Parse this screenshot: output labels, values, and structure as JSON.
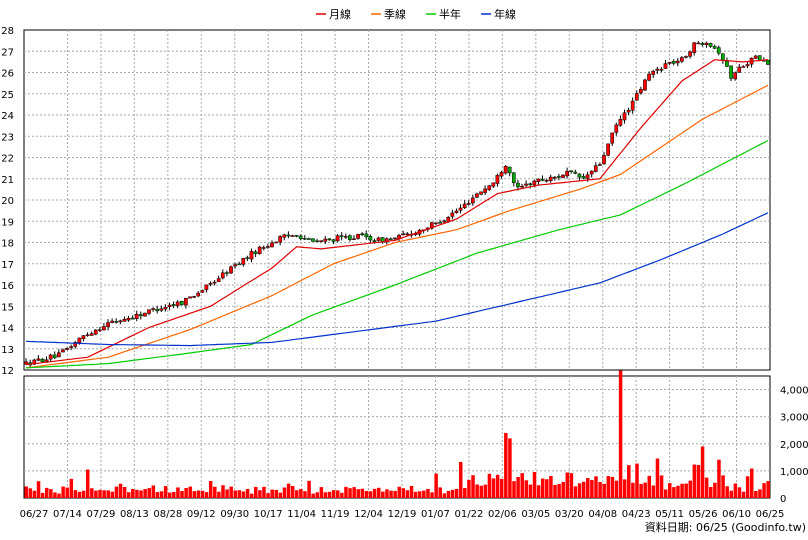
{
  "chart_data": [
    {
      "type": "candlestick-line",
      "legend": [
        {
          "name": "月線",
          "color": "#e00000"
        },
        {
          "name": "季線",
          "color": "#ff6600"
        },
        {
          "name": "半年",
          "color": "#00cc00"
        },
        {
          "name": "年線",
          "color": "#0033cc"
        }
      ],
      "ylim": [
        12,
        28
      ],
      "y_ticks": [
        "12",
        "13",
        "14",
        "15",
        "16",
        "17",
        "18",
        "19",
        "20",
        "21",
        "22",
        "23",
        "24",
        "25",
        "26",
        "27",
        "28"
      ],
      "x_ticks": [
        "06/27",
        "07/14",
        "07/29",
        "08/13",
        "08/28",
        "09/12",
        "09/30",
        "10/17",
        "11/04",
        "11/19",
        "12/04",
        "12/19",
        "01/07",
        "01/22",
        "02/06",
        "03/05",
        "03/20",
        "04/08",
        "04/23",
        "05/11",
        "05/26",
        "06/10",
        "06/25"
      ],
      "grid": true,
      "price_anchors": [
        [
          0,
          12.3
        ],
        [
          8,
          12.7
        ],
        [
          14,
          13.6
        ],
        [
          20,
          14.2
        ],
        [
          26,
          14.5
        ],
        [
          32,
          14.9
        ],
        [
          38,
          15.2
        ],
        [
          44,
          15.9
        ],
        [
          50,
          16.8
        ],
        [
          56,
          17.6
        ],
        [
          62,
          18.2
        ],
        [
          66,
          18.4
        ],
        [
          70,
          18.0
        ],
        [
          76,
          18.2
        ],
        [
          82,
          18.3
        ],
        [
          86,
          18.1
        ],
        [
          90,
          18.2
        ],
        [
          95,
          18.5
        ],
        [
          100,
          18.9
        ],
        [
          106,
          19.6
        ],
        [
          110,
          20.3
        ],
        [
          114,
          20.8
        ],
        [
          117,
          21.7
        ],
        [
          120,
          20.5
        ],
        [
          124,
          20.9
        ],
        [
          128,
          21.0
        ],
        [
          132,
          21.3
        ],
        [
          136,
          21.0
        ],
        [
          140,
          21.7
        ],
        [
          144,
          23.5
        ],
        [
          148,
          24.6
        ],
        [
          152,
          25.9
        ],
        [
          156,
          26.4
        ],
        [
          160,
          26.6
        ],
        [
          163,
          27.3
        ],
        [
          166,
          27.5
        ],
        [
          169,
          27.0
        ],
        [
          172,
          25.8
        ],
        [
          175,
          26.4
        ],
        [
          178,
          26.7
        ],
        [
          181,
          26.4
        ]
      ],
      "ma_series": [
        {
          "name": "月線",
          "anchors": [
            [
              0,
              12.25
            ],
            [
              15,
              12.6
            ],
            [
              30,
              14.0
            ],
            [
              45,
              15.0
            ],
            [
              60,
              16.8
            ],
            [
              66,
              17.8
            ],
            [
              72,
              17.7
            ],
            [
              90,
              18.1
            ],
            [
              105,
              19.1
            ],
            [
              115,
              20.3
            ],
            [
              125,
              20.7
            ],
            [
              140,
              21.0
            ],
            [
              150,
              23.4
            ],
            [
              160,
              25.6
            ],
            [
              168,
              26.6
            ],
            [
              175,
              26.5
            ],
            [
              181,
              26.6
            ]
          ]
        },
        {
          "name": "季線",
          "anchors": [
            [
              0,
              12.1
            ],
            [
              20,
              12.6
            ],
            [
              40,
              13.9
            ],
            [
              60,
              15.5
            ],
            [
              75,
              17.0
            ],
            [
              90,
              18.0
            ],
            [
              105,
              18.6
            ],
            [
              118,
              19.5
            ],
            [
              135,
              20.5
            ],
            [
              145,
              21.2
            ],
            [
              155,
              22.5
            ],
            [
              165,
              23.8
            ],
            [
              175,
              24.8
            ],
            [
              181,
              25.4
            ]
          ]
        },
        {
          "name": "半年",
          "anchors": [
            [
              0,
              12.1
            ],
            [
              20,
              12.3
            ],
            [
              40,
              12.8
            ],
            [
              55,
              13.2
            ],
            [
              70,
              14.6
            ],
            [
              90,
              16.0
            ],
            [
              110,
              17.5
            ],
            [
              130,
              18.6
            ],
            [
              145,
              19.3
            ],
            [
              160,
              20.7
            ],
            [
              170,
              21.7
            ],
            [
              181,
              22.8
            ]
          ]
        },
        {
          "name": "年線",
          "anchors": [
            [
              0,
              13.35
            ],
            [
              20,
              13.2
            ],
            [
              40,
              13.15
            ],
            [
              60,
              13.3
            ],
            [
              80,
              13.8
            ],
            [
              100,
              14.3
            ],
            [
              120,
              15.2
            ],
            [
              140,
              16.1
            ],
            [
              155,
              17.2
            ],
            [
              170,
              18.4
            ],
            [
              181,
              19.4
            ]
          ]
        }
      ]
    },
    {
      "type": "bar",
      "ylim": [
        0,
        4500
      ],
      "y_ticks": [
        "0",
        "1,000",
        "2,000",
        "3,000",
        "4,000"
      ],
      "color": "#ff0000",
      "spikes": [
        [
          3,
          620
        ],
        [
          15,
          1050
        ],
        [
          64,
          530
        ],
        [
          100,
          900
        ],
        [
          117,
          2400
        ],
        [
          118,
          2200
        ],
        [
          145,
          4700
        ],
        [
          165,
          1900
        ],
        [
          176,
          800
        ]
      ],
      "notes": "daily volume bars, baseline roughly 300-700 with spikes in Jan-Mar and 04/08"
    }
  ],
  "footer": {
    "source": "資料日期: 06/25  (Goodinfo.tw)"
  }
}
